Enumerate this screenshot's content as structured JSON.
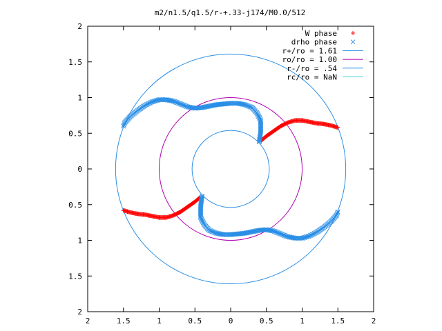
{
  "chart_data": {
    "type": "scatter",
    "title": "m2/n1.5/q1.5/r-+.33-j174/M0.0/512",
    "xlabel": "",
    "ylabel": "",
    "xlim": [
      -2,
      2
    ],
    "ylim": [
      -2,
      2
    ],
    "x_tick_labels": [
      "2",
      "1.5",
      "1",
      "0.5",
      "0",
      "0.5",
      "1",
      "1.5",
      "2"
    ],
    "y_tick_labels": [
      "2",
      "1.5",
      "1",
      "0.5",
      "0",
      "0.5",
      "1",
      "1.5",
      "2"
    ],
    "grid": false,
    "legend_position": "top-right",
    "series": [
      {
        "name": "W phase",
        "marker": "plus",
        "color": "#ff0000",
        "arms": [
          [
            [
              0.43,
              0.4
            ],
            [
              0.5,
              0.46
            ],
            [
              0.6,
              0.53
            ],
            [
              0.7,
              0.6
            ],
            [
              0.8,
              0.65
            ],
            [
              0.9,
              0.68
            ],
            [
              1.0,
              0.68
            ],
            [
              1.1,
              0.66
            ],
            [
              1.2,
              0.64
            ],
            [
              1.3,
              0.63
            ],
            [
              1.4,
              0.61
            ],
            [
              1.5,
              0.58
            ]
          ],
          [
            [
              -0.43,
              -0.4
            ],
            [
              -0.5,
              -0.46
            ],
            [
              -0.6,
              -0.53
            ],
            [
              -0.7,
              -0.6
            ],
            [
              -0.8,
              -0.65
            ],
            [
              -0.9,
              -0.68
            ],
            [
              -1.0,
              -0.68
            ],
            [
              -1.1,
              -0.66
            ],
            [
              -1.2,
              -0.64
            ],
            [
              -1.3,
              -0.63
            ],
            [
              -1.4,
              -0.61
            ],
            [
              -1.5,
              -0.58
            ]
          ]
        ]
      },
      {
        "name": "drho phase",
        "marker": "cross",
        "color": "#2a8ee6",
        "arms": [
          [
            [
              0.4,
              0.38
            ],
            [
              0.42,
              0.52
            ],
            [
              0.42,
              0.68
            ],
            [
              0.37,
              0.78
            ],
            [
              0.3,
              0.86
            ],
            [
              0.2,
              0.9
            ],
            [
              0.1,
              0.92
            ],
            [
              0.0,
              0.92
            ],
            [
              -0.1,
              0.91
            ],
            [
              -0.2,
              0.9
            ],
            [
              -0.3,
              0.88
            ],
            [
              -0.4,
              0.86
            ],
            [
              -0.5,
              0.85
            ],
            [
              -0.6,
              0.87
            ],
            [
              -0.7,
              0.91
            ],
            [
              -0.8,
              0.95
            ],
            [
              -0.9,
              0.97
            ],
            [
              -1.0,
              0.97
            ],
            [
              -1.1,
              0.94
            ],
            [
              -1.2,
              0.89
            ],
            [
              -1.3,
              0.82
            ],
            [
              -1.4,
              0.74
            ],
            [
              -1.48,
              0.65
            ],
            [
              -1.5,
              0.6
            ]
          ],
          [
            [
              -0.4,
              -0.38
            ],
            [
              -0.42,
              -0.52
            ],
            [
              -0.42,
              -0.68
            ],
            [
              -0.37,
              -0.78
            ],
            [
              -0.3,
              -0.86
            ],
            [
              -0.2,
              -0.9
            ],
            [
              -0.1,
              -0.92
            ],
            [
              0.0,
              -0.92
            ],
            [
              0.1,
              -0.91
            ],
            [
              0.2,
              -0.9
            ],
            [
              0.3,
              -0.88
            ],
            [
              0.4,
              -0.86
            ],
            [
              0.5,
              -0.85
            ],
            [
              0.6,
              -0.87
            ],
            [
              0.7,
              -0.91
            ],
            [
              0.8,
              -0.95
            ],
            [
              0.9,
              -0.97
            ],
            [
              1.0,
              -0.97
            ],
            [
              1.1,
              -0.94
            ],
            [
              1.2,
              -0.89
            ],
            [
              1.3,
              -0.82
            ],
            [
              1.4,
              -0.74
            ],
            [
              1.48,
              -0.65
            ],
            [
              1.5,
              -0.6
            ]
          ]
        ]
      },
      {
        "name": "r+/ro = 1.61",
        "type": "circle",
        "radius": 1.61,
        "color": "#2a8ee6"
      },
      {
        "name": "ro/ro = 1.00",
        "type": "circle",
        "radius": 1.0,
        "color": "#b000b0"
      },
      {
        "name": "r-/ro = .54",
        "type": "circle",
        "radius": 0.54,
        "color": "#2a8ee6"
      },
      {
        "name": "rc/ro = NaN",
        "type": "circle",
        "radius": null,
        "color": "#3ec8d6"
      }
    ]
  }
}
